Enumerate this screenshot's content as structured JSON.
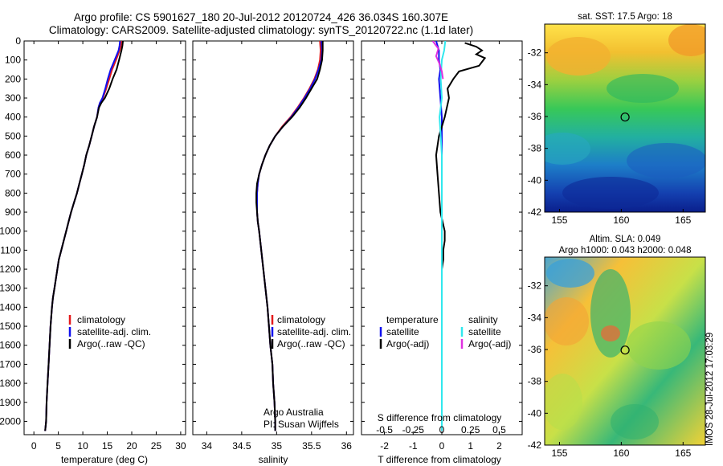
{
  "title_line1": "Argo profile: CS 5901627_180 20-Jul-2012 20120724_426 36.034S 160.307E",
  "title_line2": "Climatology: CARS2009. Satellite-adjusted climatology: synTS_20120722.nc (1.1d later)",
  "stamp": "IMOS 28-Jul-2012 17:03:29",
  "colors": {
    "climatology": "#e41a1c",
    "satellite": "#1010ee",
    "argo": "#000000",
    "sal_satellite": "#30e8ee",
    "sal_argo": "#e030e0"
  },
  "chart_data": [
    {
      "type": "line",
      "xlabel": "temperature (deg C)",
      "xlim": [
        -2,
        31
      ],
      "ylim": [
        2070,
        0
      ],
      "xticks": [
        0,
        5,
        10,
        15,
        20,
        25,
        30
      ],
      "yticks": [
        0,
        100,
        200,
        300,
        400,
        500,
        600,
        700,
        800,
        900,
        1000,
        1100,
        1200,
        1300,
        1400,
        1500,
        1600,
        1700,
        1800,
        1900,
        2000
      ],
      "legend": [
        "climatology",
        "satellite-adj. clim.",
        "Argo(..raw -QC)"
      ],
      "legend_position": "lower-center",
      "series": [
        {
          "name": "climatology",
          "color": "#e41a1c",
          "x": [
            17.9,
            17.8,
            17.5,
            16.8,
            16.0,
            15.4,
            14.8,
            14.1,
            13.5,
            13.2,
            12.9,
            12.3,
            11.8,
            11.3,
            10.7,
            10.3,
            9.8,
            9.3,
            8.8,
            8.2,
            7.6,
            7.1,
            6.6,
            6.1,
            5.6,
            5.1,
            4.8,
            4.5,
            4.2,
            3.9,
            3.7,
            3.4,
            3.2,
            3.0,
            2.8,
            2.6,
            2.5,
            2.3
          ],
          "y": [
            0,
            25,
            50,
            100,
            150,
            200,
            250,
            300,
            325,
            350,
            400,
            450,
            500,
            550,
            600,
            650,
            700,
            750,
            800,
            850,
            900,
            950,
            1000,
            1050,
            1100,
            1150,
            1200,
            1250,
            1300,
            1350,
            1400,
            1500,
            1600,
            1700,
            1800,
            1900,
            2000,
            2050
          ]
        },
        {
          "name": "satellite-adj. clim.",
          "color": "#1010ee",
          "x": [
            17.6,
            17.5,
            17.3,
            16.5,
            15.7,
            15.1,
            14.6,
            14.0,
            13.5,
            13.2,
            12.9,
            12.3,
            11.8,
            11.3,
            10.7,
            10.3,
            9.8,
            9.3,
            8.8,
            8.2,
            7.6,
            7.1,
            6.6,
            6.1,
            5.6,
            5.1,
            4.8,
            4.5,
            4.2,
            3.9,
            3.7,
            3.4,
            3.2,
            3.0,
            2.8,
            2.6,
            2.5,
            2.3
          ],
          "y": [
            0,
            25,
            50,
            100,
            150,
            200,
            250,
            300,
            325,
            350,
            400,
            450,
            500,
            550,
            600,
            650,
            700,
            750,
            800,
            850,
            900,
            950,
            1000,
            1050,
            1100,
            1150,
            1200,
            1250,
            1300,
            1350,
            1400,
            1500,
            1600,
            1700,
            1800,
            1900,
            2000,
            2050
          ]
        },
        {
          "name": "Argo(..raw -QC)",
          "color": "#000000",
          "x": [
            18.2,
            18.1,
            17.9,
            17.4,
            16.9,
            16.1,
            15.4,
            14.5,
            13.8,
            13.3,
            12.9,
            12.3,
            11.8,
            11.3,
            10.7,
            10.3,
            9.8,
            9.3,
            8.8,
            8.2,
            7.6,
            7.1,
            6.6,
            6.1,
            5.6,
            5.1,
            4.8,
            4.5,
            4.2,
            3.9,
            3.7,
            3.4,
            3.2,
            3.0,
            2.8,
            2.6,
            2.5,
            2.3
          ],
          "y": [
            0,
            25,
            50,
            100,
            150,
            200,
            250,
            300,
            325,
            350,
            400,
            450,
            500,
            550,
            600,
            650,
            700,
            750,
            800,
            850,
            900,
            950,
            1000,
            1050,
            1100,
            1150,
            1200,
            1250,
            1300,
            1350,
            1400,
            1500,
            1600,
            1700,
            1800,
            1900,
            2000,
            2050
          ]
        }
      ]
    },
    {
      "type": "line",
      "xlabel": "salinity",
      "xlim": [
        33.8,
        36.1
      ],
      "ylim": [
        2070,
        0
      ],
      "xticks": [
        34,
        34.5,
        35,
        35.5,
        36
      ],
      "legend": [
        "climatology",
        "satellite-adj. clim.",
        "Argo(..raw -QC)"
      ],
      "legend_position": "lower-center",
      "annotation": [
        "Argo Australia",
        "PI: Susan Wijffels"
      ],
      "series": [
        {
          "name": "climatology",
          "color": "#e41a1c",
          "x": [
            35.62,
            35.63,
            35.62,
            35.59,
            35.54,
            35.47,
            35.39,
            35.3,
            35.2,
            35.08,
            34.98,
            34.9,
            34.84,
            34.79,
            34.75,
            34.73,
            34.72,
            34.72,
            34.72,
            34.73,
            34.75,
            34.78,
            34.81,
            34.84,
            34.87,
            34.89,
            34.91,
            34.94,
            34.95,
            34.97,
            34.98,
            34.98
          ],
          "y": [
            0,
            50,
            100,
            150,
            200,
            250,
            300,
            350,
            400,
            450,
            500,
            550,
            600,
            650,
            700,
            750,
            800,
            850,
            900,
            950,
            1000,
            1100,
            1200,
            1300,
            1400,
            1500,
            1600,
            1700,
            1800,
            1900,
            2000,
            2050
          ]
        },
        {
          "name": "satellite-adj. clim.",
          "color": "#1010ee",
          "x": [
            35.64,
            35.65,
            35.64,
            35.6,
            35.55,
            35.48,
            35.4,
            35.31,
            35.21,
            35.09,
            34.98,
            34.9,
            34.84,
            34.79,
            34.75,
            34.73,
            34.72,
            34.72,
            34.72,
            34.73,
            34.75,
            34.78,
            34.81,
            34.84,
            34.87,
            34.89,
            34.91,
            34.94,
            34.95,
            34.97,
            34.98,
            34.98
          ],
          "y": [
            0,
            50,
            100,
            150,
            200,
            250,
            300,
            350,
            400,
            450,
            500,
            550,
            600,
            650,
            700,
            750,
            800,
            850,
            900,
            950,
            1000,
            1100,
            1200,
            1300,
            1400,
            1500,
            1600,
            1700,
            1800,
            1900,
            2000,
            2050
          ]
        },
        {
          "name": "Argo(..raw -QC)",
          "color": "#000000",
          "x": [
            35.66,
            35.66,
            35.65,
            35.62,
            35.58,
            35.5,
            35.42,
            35.33,
            35.22,
            35.09,
            34.98,
            34.9,
            34.84,
            34.79,
            34.75,
            34.72,
            34.71,
            34.71,
            34.72,
            34.73,
            34.75,
            34.78,
            34.81,
            34.84,
            34.87,
            34.89,
            34.91,
            34.94,
            34.95,
            34.97,
            34.98,
            34.98
          ],
          "y": [
            0,
            50,
            100,
            150,
            200,
            250,
            300,
            350,
            400,
            450,
            500,
            550,
            600,
            650,
            700,
            750,
            800,
            850,
            900,
            950,
            1000,
            1100,
            1200,
            1300,
            1400,
            1500,
            1600,
            1700,
            1800,
            1900,
            2000,
            2050
          ]
        }
      ]
    },
    {
      "type": "line",
      "xlabel_bottom": "T difference from climatology",
      "xlabel_top": "S difference from climatology",
      "xlim": [
        -2.8,
        2.8
      ],
      "ylim": [
        2070,
        0
      ],
      "xticks": [
        -2,
        -1,
        0,
        1,
        2
      ],
      "xticks_salinity": [
        -0.5,
        -0.25,
        0,
        0.25,
        0.5
      ],
      "legend_temperature": {
        "title": "temperature",
        "items": [
          "satellite",
          "Argo(-adj)"
        ]
      },
      "legend_salinity": {
        "title": "salinity",
        "items": [
          "satellite",
          "Argo(-adj)"
        ]
      },
      "series": [
        {
          "name": "temperature satellite",
          "color": "#1010ee",
          "x": [
            -0.2,
            -0.1,
            -0.1,
            -0.05,
            -0.1,
            -0.05,
            0,
            0,
            0,
            0,
            0,
            0,
            0,
            0,
            0,
            0,
            0,
            0,
            0,
            0,
            0,
            0,
            0
          ],
          "y": [
            0,
            50,
            100,
            150,
            200,
            300,
            400,
            500,
            600,
            700,
            800,
            900,
            1000,
            1100,
            1200,
            1300,
            1400,
            1500,
            1600,
            1700,
            1800,
            1900,
            2050
          ]
        },
        {
          "name": "temperature Argo(-adj)",
          "color": "#000000",
          "x": [
            0.8,
            1.2,
            1.4,
            1.2,
            1.5,
            1.4,
            1.3,
            0.6,
            0.4,
            0.2,
            0.25,
            0.1,
            -0.1,
            -0.2,
            -0.15,
            -0.1,
            -0.05,
            0.1,
            0.1,
            0.05,
            0.05,
            0,
            0,
            0,
            0,
            0,
            0,
            0,
            0,
            0,
            0,
            0,
            0,
            0,
            0,
            0
          ],
          "y": [
            10,
            30,
            50,
            70,
            90,
            110,
            130,
            160,
            200,
            250,
            300,
            400,
            500,
            600,
            700,
            800,
            900,
            1000,
            1050,
            1100,
            1150,
            1200,
            1250,
            1300,
            1350,
            1400,
            1450,
            1500,
            1550,
            1600,
            1650,
            1700,
            1800,
            1900,
            2000,
            2050
          ]
        },
        {
          "name": "salinity satellite",
          "color": "#30e8ee",
          "x": [
            0.03,
            0.02,
            0.0,
            -0.01,
            0,
            -0.02,
            -0.01,
            0,
            0,
            0,
            0,
            0,
            0,
            0,
            0,
            0,
            0
          ],
          "y": [
            0,
            50,
            100,
            200,
            300,
            400,
            500,
            600,
            800,
            1000,
            1100,
            1200,
            1400,
            1600,
            1800,
            1900,
            2050
          ]
        },
        {
          "name": "salinity Argo(-adj)",
          "color": "#e030e0",
          "x": [
            -0.08,
            -0.03,
            -0.05,
            -0.02,
            0.0,
            0.01
          ],
          "y": [
            0,
            40,
            80,
            120,
            160,
            200
          ]
        }
      ]
    }
  ],
  "maps": [
    {
      "title": "sat. SST: 17.5 Argo: 18",
      "xticks": [
        155,
        160,
        165
      ],
      "yticks": [
        -32,
        -34,
        -36,
        -38,
        -40,
        -42
      ],
      "xlim": [
        153.8,
        166.8
      ],
      "ylim": [
        -42,
        -30.2
      ],
      "marker": {
        "lon": 160.307,
        "lat": -36.034
      }
    },
    {
      "title_line1": "Altim. SLA: 0.049",
      "title_line2": "Argo h1000: 0.043 h2000: 0.048",
      "xticks": [
        155,
        160,
        165
      ],
      "yticks": [
        -32,
        -34,
        -36,
        -38,
        -40,
        -42
      ],
      "xlim": [
        153.8,
        166.8
      ],
      "ylim": [
        -42,
        -30.2
      ],
      "marker": {
        "lon": 160.307,
        "lat": -36.034
      }
    }
  ]
}
